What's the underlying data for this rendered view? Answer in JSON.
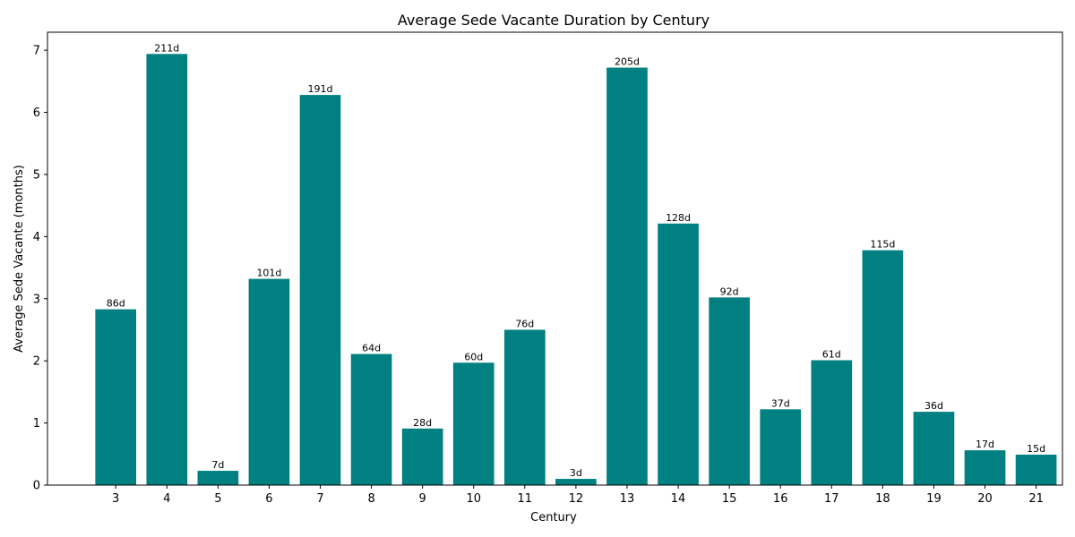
{
  "chart_data": {
    "type": "bar",
    "title": "Average Sede Vacante Duration by Century",
    "xlabel": "Century",
    "ylabel": "Average Sede Vacante (months)",
    "categories": [
      "3",
      "4",
      "5",
      "6",
      "7",
      "8",
      "9",
      "10",
      "11",
      "12",
      "13",
      "14",
      "15",
      "16",
      "17",
      "18",
      "19",
      "20",
      "21"
    ],
    "values": [
      2.83,
      6.94,
      0.23,
      3.32,
      6.28,
      2.11,
      0.91,
      1.97,
      2.5,
      0.1,
      6.72,
      4.21,
      3.02,
      1.22,
      2.01,
      3.78,
      1.18,
      0.56,
      0.49
    ],
    "data_labels": [
      "86d",
      "211d",
      "7d",
      "101d",
      "191d",
      "64d",
      "28d",
      "60d",
      "76d",
      "3d",
      "205d",
      "128d",
      "92d",
      "37d",
      "61d",
      "115d",
      "36d",
      "17d",
      "15d"
    ],
    "ylim": [
      0,
      7.29
    ],
    "yticks": [
      "0",
      "1",
      "2",
      "3",
      "4",
      "5",
      "6",
      "7"
    ],
    "grid": false,
    "legend": "none",
    "bar_color": "#008080"
  }
}
